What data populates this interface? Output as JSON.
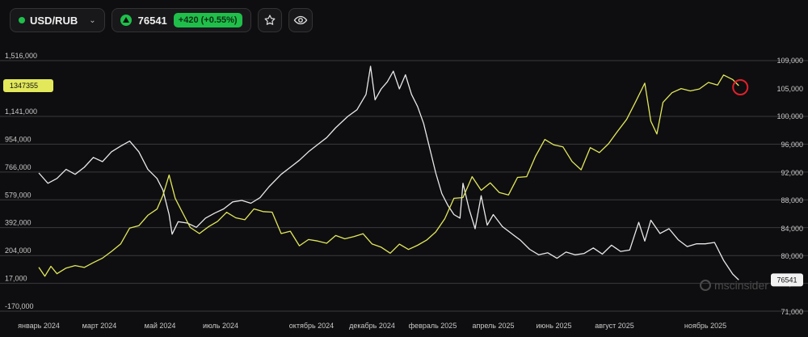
{
  "header": {
    "symbol": "USD/RUB",
    "price": "76541",
    "change": "+420 (+0.55%)"
  },
  "watermark": "mscinsider",
  "colors": {
    "background": "#0e0e10",
    "white_series": "#e8e8e8",
    "yellow_series": "#e2e85a",
    "accent_green": "#1fbf4a",
    "marker": "#e0202a"
  },
  "chart_data": {
    "type": "line",
    "grid": true,
    "left_axis": {
      "ticks": [
        "1,516,000",
        "1,141,000",
        "954,000",
        "766,000",
        "579,000",
        "392,000",
        "204,000",
        "17,000",
        "-170,000"
      ],
      "tick_values": [
        1516000,
        1141000,
        954000,
        766000,
        579000,
        392000,
        204000,
        17000,
        -170000
      ],
      "range": [
        -170000,
        1516000
      ],
      "current_tag": "1347355"
    },
    "right_axis": {
      "ticks": [
        "109,000",
        "105,000",
        "100,000",
        "96,000",
        "92,000",
        "88,000",
        "84,000",
        "80,000",
        "76,000",
        "71,000"
      ],
      "tick_values": [
        109000,
        105000,
        100000,
        96000,
        92000,
        88000,
        84000,
        80000,
        76000,
        71000
      ],
      "current_tag": "76541"
    },
    "x_ticks": [
      "январь 2024",
      "март 2024",
      "май 2024",
      "июль 2024",
      "октябрь 2024",
      "декабрь 2024",
      "февраль 2025",
      "апрель 2025",
      "июнь 2025",
      "август 2025",
      "ноябрь 2025"
    ],
    "x_tick_index": [
      0,
      2,
      4,
      6,
      9,
      11,
      13,
      15,
      17,
      19,
      22
    ],
    "series": [
      {
        "color": "#e8e8e8",
        "axis": "right",
        "points": [
          [
            0.0,
            92000
          ],
          [
            0.3,
            90500
          ],
          [
            0.6,
            91200
          ],
          [
            0.9,
            92500
          ],
          [
            1.2,
            91800
          ],
          [
            1.5,
            92800
          ],
          [
            1.8,
            94200
          ],
          [
            2.1,
            93600
          ],
          [
            2.4,
            95000
          ],
          [
            2.7,
            95800
          ],
          [
            3.0,
            96500
          ],
          [
            3.3,
            95000
          ],
          [
            3.6,
            92500
          ],
          [
            3.9,
            91200
          ],
          [
            4.1,
            89500
          ],
          [
            4.3,
            86000
          ],
          [
            4.4,
            83200
          ],
          [
            4.6,
            85000
          ],
          [
            4.9,
            84800
          ],
          [
            5.2,
            84200
          ],
          [
            5.5,
            85500
          ],
          [
            5.8,
            86200
          ],
          [
            6.1,
            86800
          ],
          [
            6.4,
            87800
          ],
          [
            6.7,
            88000
          ],
          [
            7.0,
            87600
          ],
          [
            7.3,
            88400
          ],
          [
            7.6,
            90000
          ],
          [
            8.0,
            91800
          ],
          [
            8.3,
            92800
          ],
          [
            8.6,
            93800
          ],
          [
            8.9,
            95000
          ],
          [
            9.2,
            96000
          ],
          [
            9.5,
            97000
          ],
          [
            9.8,
            98400
          ],
          [
            10.2,
            100000
          ],
          [
            10.5,
            101200
          ],
          [
            10.8,
            104000
          ],
          [
            10.95,
            108200
          ],
          [
            11.1,
            103000
          ],
          [
            11.3,
            105000
          ],
          [
            11.5,
            106000
          ],
          [
            11.7,
            107500
          ],
          [
            11.9,
            105000
          ],
          [
            12.1,
            107000
          ],
          [
            12.3,
            104000
          ],
          [
            12.5,
            101800
          ],
          [
            12.7,
            99000
          ],
          [
            12.9,
            95500
          ],
          [
            13.1,
            92000
          ],
          [
            13.3,
            89000
          ],
          [
            13.5,
            87300
          ],
          [
            13.7,
            86000
          ],
          [
            13.9,
            85500
          ],
          [
            14.0,
            90500
          ],
          [
            14.2,
            86800
          ],
          [
            14.4,
            84000
          ],
          [
            14.6,
            88700
          ],
          [
            14.8,
            84500
          ],
          [
            15.0,
            86000
          ],
          [
            15.3,
            84300
          ],
          [
            15.6,
            83300
          ],
          [
            15.9,
            82300
          ],
          [
            16.2,
            81000
          ],
          [
            16.5,
            80200
          ],
          [
            16.8,
            80500
          ],
          [
            17.1,
            79700
          ],
          [
            17.4,
            80600
          ],
          [
            17.7,
            80200
          ],
          [
            18.0,
            80400
          ],
          [
            18.3,
            81200
          ],
          [
            18.6,
            80300
          ],
          [
            18.9,
            81600
          ],
          [
            19.2,
            80700
          ],
          [
            19.5,
            80900
          ],
          [
            19.8,
            84900
          ],
          [
            20.0,
            82200
          ],
          [
            20.2,
            85200
          ],
          [
            20.5,
            83300
          ],
          [
            20.8,
            84000
          ],
          [
            21.1,
            82400
          ],
          [
            21.4,
            81400
          ],
          [
            21.7,
            81800
          ],
          [
            22.0,
            81800
          ],
          [
            22.3,
            82000
          ],
          [
            22.6,
            79400
          ],
          [
            22.9,
            77400
          ],
          [
            23.1,
            76541
          ]
        ]
      },
      {
        "color": "#e2e85a",
        "axis": "left",
        "points": [
          [
            0.0,
            125000
          ],
          [
            0.2,
            65000
          ],
          [
            0.4,
            132000
          ],
          [
            0.6,
            82000
          ],
          [
            0.9,
            120000
          ],
          [
            1.2,
            137000
          ],
          [
            1.5,
            124000
          ],
          [
            1.8,
            157000
          ],
          [
            2.1,
            187000
          ],
          [
            2.4,
            232000
          ],
          [
            2.7,
            282000
          ],
          [
            3.0,
            389000
          ],
          [
            3.3,
            405000
          ],
          [
            3.6,
            475000
          ],
          [
            3.9,
            517000
          ],
          [
            4.1,
            610000
          ],
          [
            4.3,
            746000
          ],
          [
            4.5,
            590000
          ],
          [
            4.7,
            510000
          ],
          [
            5.0,
            393000
          ],
          [
            5.3,
            352000
          ],
          [
            5.6,
            398000
          ],
          [
            5.9,
            434000
          ],
          [
            6.2,
            495000
          ],
          [
            6.5,
            458000
          ],
          [
            6.8,
            445000
          ],
          [
            7.1,
            518000
          ],
          [
            7.4,
            500000
          ],
          [
            7.7,
            496000
          ],
          [
            8.0,
            352000
          ],
          [
            8.3,
            368000
          ],
          [
            8.6,
            270000
          ],
          [
            8.9,
            312000
          ],
          [
            9.2,
            302000
          ],
          [
            9.5,
            287000
          ],
          [
            9.8,
            339000
          ],
          [
            10.1,
            317000
          ],
          [
            10.4,
            332000
          ],
          [
            10.7,
            351000
          ],
          [
            11.0,
            282000
          ],
          [
            11.3,
            260000
          ],
          [
            11.6,
            220000
          ],
          [
            11.9,
            281000
          ],
          [
            12.2,
            245000
          ],
          [
            12.5,
            273000
          ],
          [
            12.8,
            308000
          ],
          [
            13.1,
            363000
          ],
          [
            13.4,
            452000
          ],
          [
            13.7,
            589000
          ],
          [
            14.0,
            594000
          ],
          [
            14.3,
            735000
          ],
          [
            14.6,
            643000
          ],
          [
            14.9,
            693000
          ],
          [
            15.2,
            628000
          ],
          [
            15.5,
            612000
          ],
          [
            15.8,
            730000
          ],
          [
            16.1,
            735000
          ],
          [
            16.4,
            875000
          ],
          [
            16.7,
            985000
          ],
          [
            17.0,
            949000
          ],
          [
            17.3,
            935000
          ],
          [
            17.6,
            837000
          ],
          [
            17.9,
            781000
          ],
          [
            18.2,
            930000
          ],
          [
            18.5,
            897000
          ],
          [
            18.8,
            956000
          ],
          [
            19.1,
            1040000
          ],
          [
            19.4,
            1120000
          ],
          [
            19.7,
            1240000
          ],
          [
            20.0,
            1364000
          ],
          [
            20.2,
            1108000
          ],
          [
            20.4,
            1022000
          ],
          [
            20.6,
            1235000
          ],
          [
            20.9,
            1300000
          ],
          [
            21.2,
            1328000
          ],
          [
            21.5,
            1312000
          ],
          [
            21.8,
            1325000
          ],
          [
            22.1,
            1369000
          ],
          [
            22.4,
            1351000
          ],
          [
            22.6,
            1419000
          ],
          [
            22.9,
            1389000
          ],
          [
            23.1,
            1347355
          ]
        ]
      }
    ]
  }
}
